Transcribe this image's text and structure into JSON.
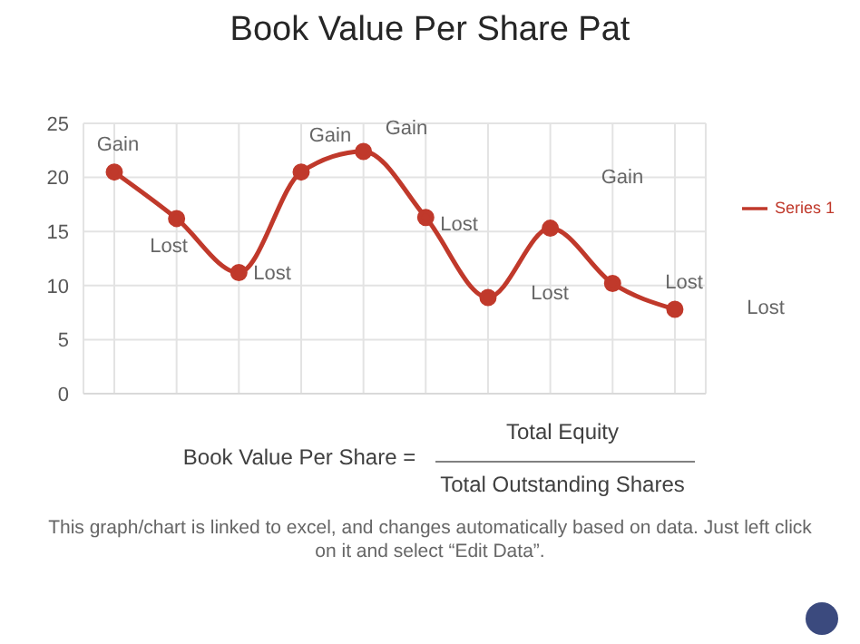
{
  "chart_data": {
    "type": "line",
    "title": "Book Value Per Share Pat",
    "categories": [
      null,
      null,
      null,
      null,
      null,
      null,
      null,
      null,
      null,
      null
    ],
    "series": [
      {
        "name": "Series 1",
        "color": "#c0392b",
        "values": [
          20.5,
          16.2,
          11.2,
          20.5,
          22.4,
          16.3,
          8.9,
          15.3,
          10.2,
          7.8
        ]
      }
    ],
    "ylim": [
      0,
      25
    ],
    "yticks": [
      0,
      5,
      10,
      15,
      20,
      25
    ],
    "grid": true,
    "legend": "right",
    "marker": "circle",
    "line_style": "solid",
    "annotations": [
      "Gain",
      "Lost",
      "Lost",
      "Gain",
      "Gain",
      "Lost",
      "Lost",
      "Gain",
      "Lost",
      "Lost",
      "Book Value Per Share =",
      "Total Equity",
      "Total Outstanding Shares",
      "This graph/chart is linked to excel, and changes automatically based on data. Just left click on it and select “Edit Data”."
    ]
  }
}
